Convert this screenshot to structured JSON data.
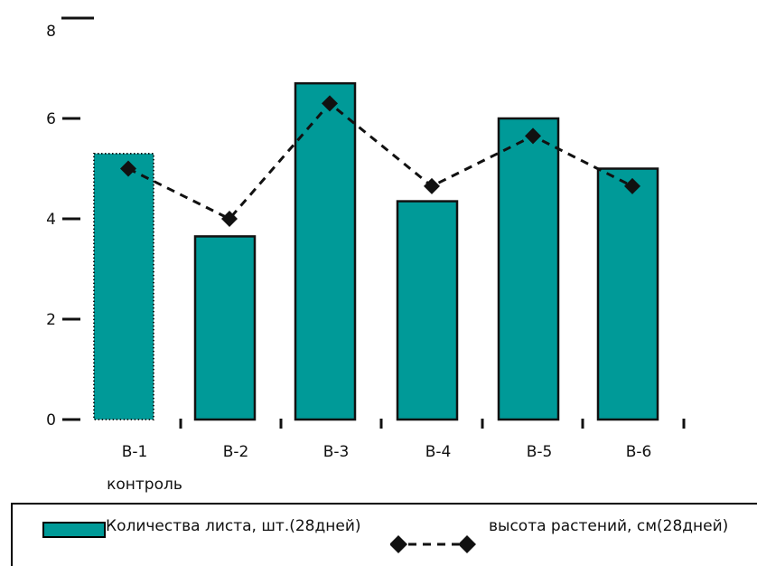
{
  "chart_data": {
    "type": "bar",
    "categories": [
      "В-1",
      "В-2",
      "В-3",
      "В-4",
      "В-5",
      "В-6"
    ],
    "category_sublabels": [
      "контроль",
      "",
      "",
      "",
      "",
      ""
    ],
    "series": [
      {
        "name": "Количества листа, шт.(28дней)",
        "kind": "bar",
        "color": "#009a98",
        "values": [
          5.3,
          3.65,
          6.7,
          4.35,
          6.0,
          5.0
        ]
      },
      {
        "name": "высота растений, см(28дней)",
        "kind": "line",
        "style": "dashed",
        "marker": "diamond",
        "color": "#111111",
        "values": [
          5.0,
          4.0,
          6.3,
          4.65,
          5.65,
          4.65
        ]
      }
    ],
    "y_ticks": [
      "0",
      "2",
      "4",
      "6",
      "8"
    ],
    "ylim": [
      0,
      8
    ],
    "title": "",
    "xlabel": "",
    "ylabel": "",
    "grid": false,
    "legend_position": "bottom"
  }
}
